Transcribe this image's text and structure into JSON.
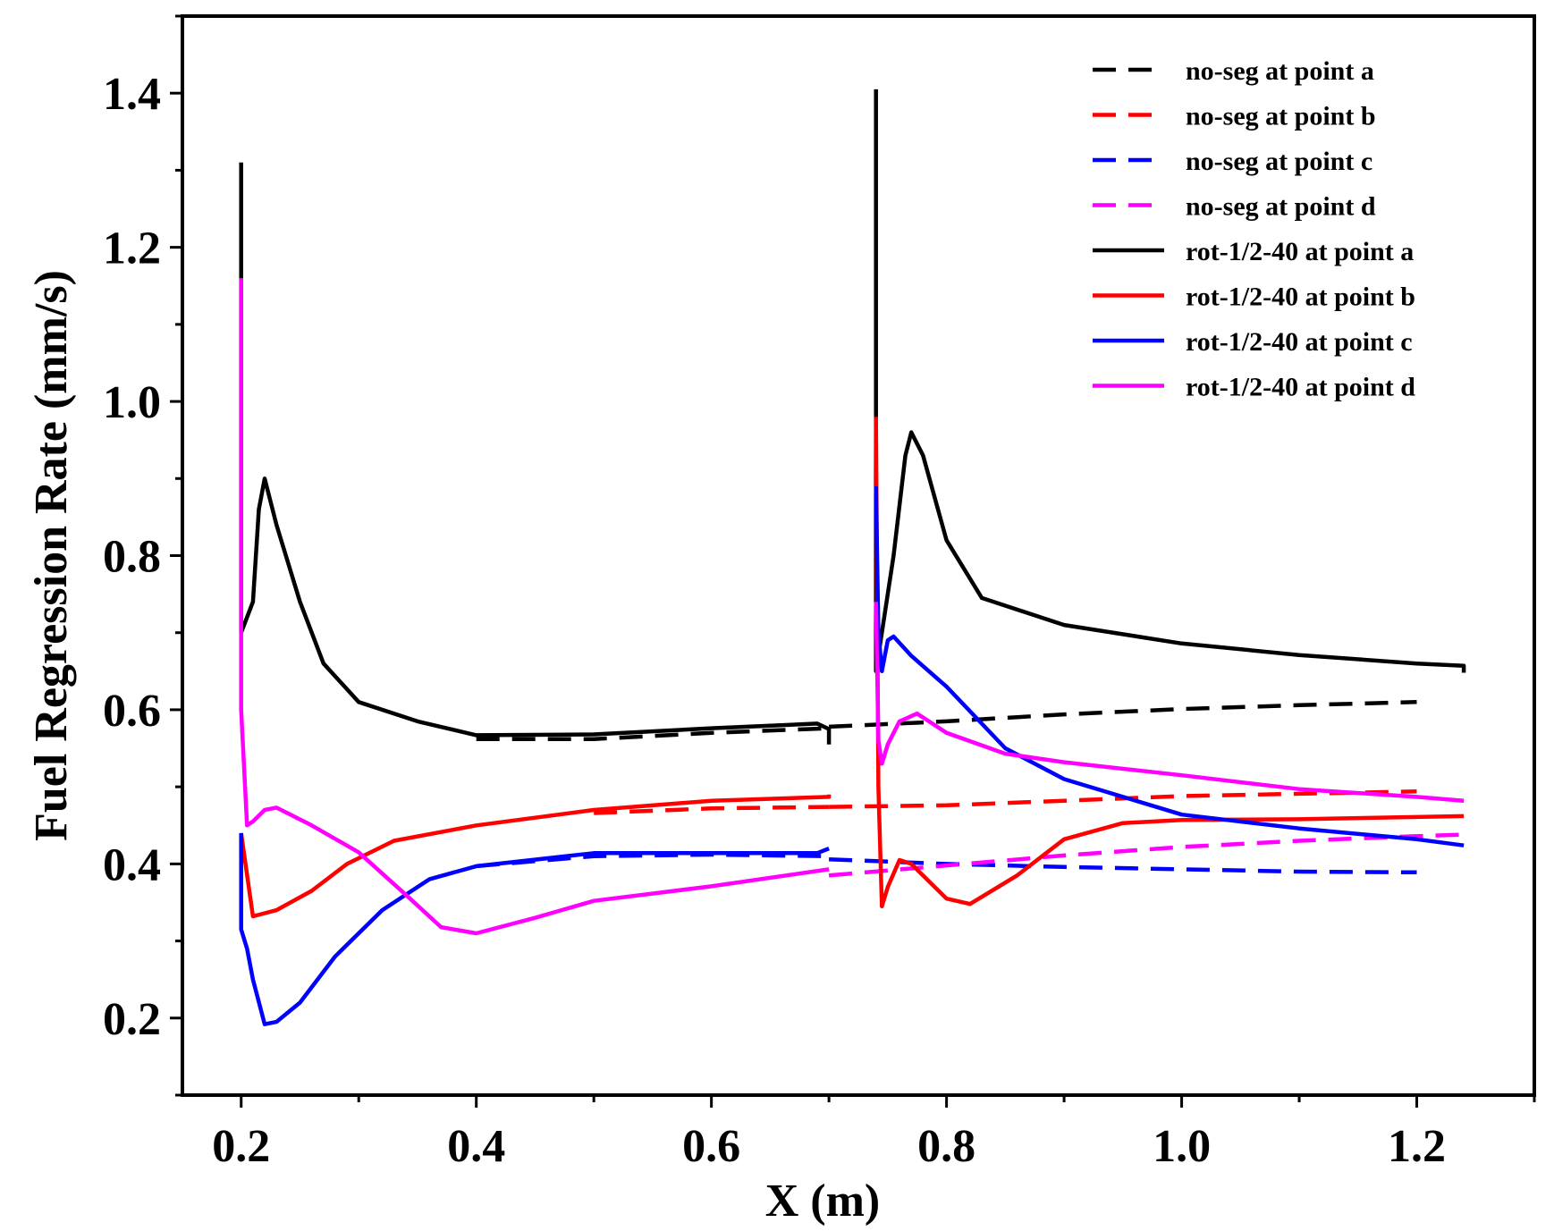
{
  "chart_data": {
    "type": "line",
    "title": "",
    "xlabel": "X (m)",
    "ylabel": "Fuel Regression Rate (mm/s)",
    "xlim": [
      0.15,
      1.3
    ],
    "ylim": [
      0.1,
      1.5
    ],
    "xticks": [
      0.2,
      0.4,
      0.6,
      0.8,
      1.0,
      1.2
    ],
    "xtick_labels": [
      "0.2",
      "0.4",
      "0.6",
      "0.8",
      "1.0",
      "1.2"
    ],
    "yticks": [
      0.2,
      0.4,
      0.6,
      0.8,
      1.0,
      1.2,
      1.4
    ],
    "ytick_labels": [
      "0.2",
      "0.4",
      "0.6",
      "0.8",
      "1.0",
      "1.2",
      "1.4"
    ],
    "legend_position": "top-right",
    "series": [
      {
        "name": "no-seg at point a",
        "color": "#000000",
        "dash": true,
        "segments": [
          [
            [
              0.4,
              0.562
            ],
            [
              0.5,
              0.562
            ],
            [
              0.6,
              0.57
            ],
            [
              0.7,
              0.576
            ]
          ],
          [
            [
              0.7,
              0.578
            ],
            [
              0.8,
              0.585
            ],
            [
              0.9,
              0.594
            ],
            [
              1.0,
              0.601
            ],
            [
              1.1,
              0.606
            ],
            [
              1.2,
              0.61
            ]
          ]
        ]
      },
      {
        "name": "no-seg at point b",
        "color": "#ff0000",
        "dash": true,
        "segments": [
          [
            [
              0.5,
              0.466
            ],
            [
              0.6,
              0.472
            ],
            [
              0.7,
              0.474
            ]
          ],
          [
            [
              0.7,
              0.474
            ],
            [
              0.8,
              0.476
            ],
            [
              0.9,
              0.482
            ],
            [
              1.0,
              0.488
            ],
            [
              1.1,
              0.491
            ],
            [
              1.2,
              0.494
            ]
          ]
        ]
      },
      {
        "name": "no-seg at point c",
        "color": "#0000ff",
        "dash": true,
        "segments": [
          [
            [
              0.4,
              0.397
            ],
            [
              0.5,
              0.41
            ],
            [
              0.6,
              0.412
            ],
            [
              0.7,
              0.41
            ]
          ],
          [
            [
              0.7,
              0.406
            ],
            [
              0.8,
              0.4
            ],
            [
              0.9,
              0.396
            ],
            [
              1.0,
              0.393
            ],
            [
              1.1,
              0.39
            ],
            [
              1.2,
              0.389
            ]
          ]
        ]
      },
      {
        "name": "no-seg at point d",
        "color": "#ff00ff",
        "dash": true,
        "segments": [
          [
            [
              0.7,
              0.385
            ],
            [
              0.8,
              0.398
            ],
            [
              0.9,
              0.411
            ],
            [
              1.0,
              0.422
            ],
            [
              1.1,
              0.43
            ],
            [
              1.2,
              0.436
            ],
            [
              1.24,
              0.438
            ]
          ]
        ]
      },
      {
        "name": "rot-1/2-40 at point a",
        "color": "#000000",
        "dash": false,
        "segments": [
          [
            [
              0.2,
              1.31
            ],
            [
              0.2,
              0.7
            ],
            [
              0.21,
              0.74
            ],
            [
              0.215,
              0.86
            ],
            [
              0.22,
              0.9
            ],
            [
              0.23,
              0.84
            ],
            [
              0.25,
              0.74
            ],
            [
              0.27,
              0.66
            ],
            [
              0.3,
              0.61
            ],
            [
              0.35,
              0.585
            ],
            [
              0.4,
              0.567
            ],
            [
              0.5,
              0.568
            ],
            [
              0.6,
              0.576
            ],
            [
              0.69,
              0.582
            ],
            [
              0.7,
              0.575
            ],
            [
              0.7,
              0.555
            ]
          ],
          [
            [
              0.74,
              1.405
            ],
            [
              0.74,
              0.65
            ],
            [
              0.745,
              0.7
            ],
            [
              0.755,
              0.8
            ],
            [
              0.765,
              0.93
            ],
            [
              0.77,
              0.96
            ],
            [
              0.78,
              0.93
            ],
            [
              0.8,
              0.82
            ],
            [
              0.83,
              0.745
            ],
            [
              0.9,
              0.71
            ],
            [
              1.0,
              0.686
            ],
            [
              1.1,
              0.671
            ],
            [
              1.2,
              0.66
            ],
            [
              1.24,
              0.657
            ],
            [
              1.24,
              0.648
            ]
          ]
        ]
      },
      {
        "name": "rot-1/2-40 at point b",
        "color": "#ff0000",
        "dash": false,
        "segments": [
          [
            [
              0.2,
              0.44
            ],
            [
              0.21,
              0.332
            ],
            [
              0.23,
              0.34
            ],
            [
              0.26,
              0.365
            ],
            [
              0.29,
              0.4
            ],
            [
              0.33,
              0.43
            ],
            [
              0.4,
              0.45
            ],
            [
              0.5,
              0.47
            ],
            [
              0.6,
              0.482
            ],
            [
              0.7,
              0.487
            ],
            [
              0.7,
              0.49
            ]
          ],
          [
            [
              0.74,
              0.98
            ],
            [
              0.742,
              0.5
            ],
            [
              0.745,
              0.345
            ],
            [
              0.75,
              0.37
            ],
            [
              0.76,
              0.405
            ],
            [
              0.77,
              0.4
            ],
            [
              0.8,
              0.355
            ],
            [
              0.82,
              0.348
            ],
            [
              0.86,
              0.385
            ],
            [
              0.9,
              0.432
            ],
            [
              0.95,
              0.453
            ],
            [
              1.0,
              0.457
            ],
            [
              1.1,
              0.458
            ],
            [
              1.24,
              0.462
            ]
          ]
        ]
      },
      {
        "name": "rot-1/2-40 at point c",
        "color": "#0000ff",
        "dash": false,
        "segments": [
          [
            [
              0.2,
              0.44
            ],
            [
              0.2,
              0.315
            ],
            [
              0.205,
              0.29
            ],
            [
              0.21,
              0.25
            ],
            [
              0.22,
              0.192
            ],
            [
              0.23,
              0.195
            ],
            [
              0.25,
              0.22
            ],
            [
              0.28,
              0.28
            ],
            [
              0.32,
              0.34
            ],
            [
              0.36,
              0.38
            ],
            [
              0.4,
              0.397
            ],
            [
              0.5,
              0.414
            ],
            [
              0.6,
              0.414
            ],
            [
              0.69,
              0.414
            ],
            [
              0.7,
              0.42
            ]
          ],
          [
            [
              0.74,
              0.89
            ],
            [
              0.742,
              0.7
            ],
            [
              0.745,
              0.65
            ],
            [
              0.75,
              0.69
            ],
            [
              0.755,
              0.695
            ],
            [
              0.77,
              0.67
            ],
            [
              0.8,
              0.63
            ],
            [
              0.85,
              0.55
            ],
            [
              0.9,
              0.51
            ],
            [
              1.0,
              0.464
            ],
            [
              1.1,
              0.446
            ],
            [
              1.2,
              0.432
            ],
            [
              1.24,
              0.424
            ]
          ]
        ]
      },
      {
        "name": "rot-1/2-40 at point d",
        "color": "#ff00ff",
        "dash": false,
        "segments": [
          [
            [
              0.2,
              1.16
            ],
            [
              0.2,
              0.9
            ],
            [
              0.2,
              0.6
            ],
            [
              0.205,
              0.45
            ],
            [
              0.21,
              0.455
            ],
            [
              0.22,
              0.47
            ],
            [
              0.23,
              0.473
            ],
            [
              0.26,
              0.45
            ],
            [
              0.3,
              0.415
            ],
            [
              0.34,
              0.36
            ],
            [
              0.37,
              0.318
            ],
            [
              0.4,
              0.31
            ],
            [
              0.45,
              0.33
            ],
            [
              0.5,
              0.352
            ],
            [
              0.6,
              0.371
            ],
            [
              0.7,
              0.393
            ]
          ],
          [
            [
              0.74,
              0.74
            ],
            [
              0.742,
              0.56
            ],
            [
              0.745,
              0.53
            ],
            [
              0.75,
              0.555
            ],
            [
              0.76,
              0.585
            ],
            [
              0.775,
              0.595
            ],
            [
              0.8,
              0.57
            ],
            [
              0.85,
              0.543
            ],
            [
              0.9,
              0.532
            ],
            [
              1.0,
              0.515
            ],
            [
              1.1,
              0.497
            ],
            [
              1.2,
              0.487
            ],
            [
              1.24,
              0.482
            ]
          ]
        ]
      }
    ]
  }
}
